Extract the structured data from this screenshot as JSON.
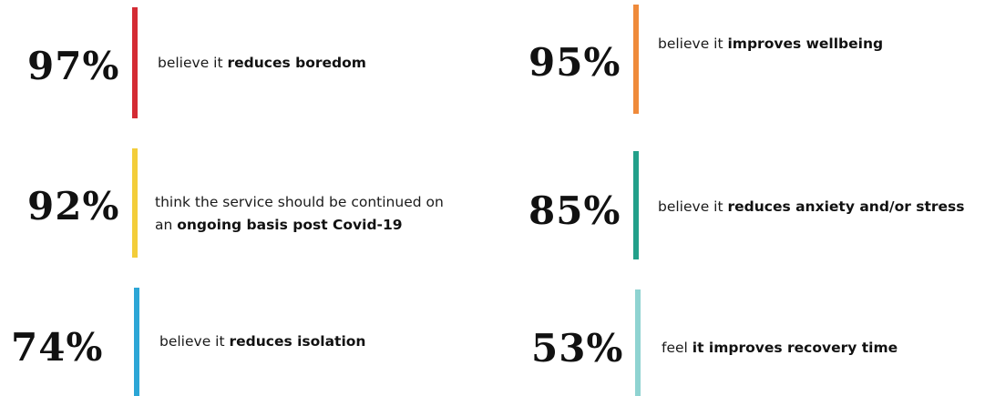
{
  "stats": [
    {
      "value": "97%",
      "line1_plain": "believe it ",
      "line1_bold": "reduces boredom",
      "line2_plain": "",
      "line2_bold": "",
      "bar_color": "#d42b34"
    },
    {
      "value": "95%",
      "line1_plain": "believe it ",
      "line1_bold": "improves wellbeing",
      "line2_plain": "",
      "line2_bold": "",
      "bar_color": "#ef8a3a"
    },
    {
      "value": "92%",
      "line1_plain": "think the service should be continued on",
      "line1_bold": "",
      "line2_plain": "an ",
      "line2_bold": "ongoing basis post Covid-19",
      "bar_color": "#f3cd3a"
    },
    {
      "value": "85%",
      "line1_plain": "believe it ",
      "line1_bold": "reduces anxiety and/or stress",
      "line2_plain": "",
      "line2_bold": "",
      "bar_color": "#22a08a"
    },
    {
      "value": "74%",
      "line1_plain": "believe it ",
      "line1_bold": "reduces isolation",
      "line2_plain": "",
      "line2_bold": "",
      "bar_color": "#2ca6d6"
    },
    {
      "value": "53%",
      "line1_plain": "feel ",
      "line1_bold": "it improves recovery time",
      "line2_plain": "",
      "line2_bold": "",
      "bar_color": "#8fd3d1"
    }
  ]
}
